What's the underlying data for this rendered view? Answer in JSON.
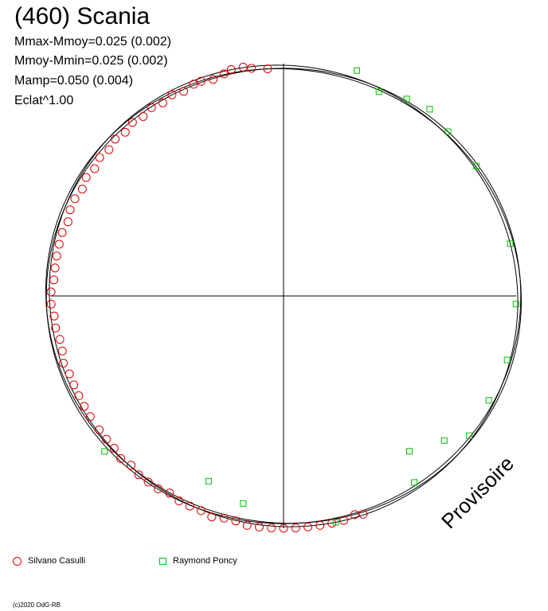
{
  "header": {
    "title": "(460) Scania",
    "stats": [
      "Mmax-Mmoy=0.025 (0.002)",
      "Mmoy-Mmin=0.025 (0.002)",
      "Mamp=0.050 (0.004)",
      "Eclat^1.00"
    ]
  },
  "watermark": "Provisoire",
  "copyright": "(c)2020 OdG-RB",
  "colors": {
    "series1": "#e00000",
    "series2": "#00c000",
    "axis": "#000000"
  },
  "legend": [
    {
      "name": "Silvano Casulli",
      "symbol": "circle"
    },
    {
      "name": "Raymond Poncy",
      "symbol": "square"
    }
  ],
  "chart_data": {
    "type": "scatter",
    "projection": "polar",
    "grid": false,
    "series": [
      {
        "name": "Silvano Casulli",
        "symbol": "circle",
        "points": [
          {
            "angle": 94,
            "r": 0.98
          },
          {
            "angle": 98,
            "r": 0.99
          },
          {
            "angle": 100,
            "r": 1.0
          },
          {
            "angle": 103,
            "r": 1.0
          },
          {
            "angle": 105,
            "r": 0.99
          },
          {
            "angle": 108,
            "r": 0.98
          },
          {
            "angle": 111,
            "r": 0.99
          },
          {
            "angle": 113,
            "r": 0.99
          },
          {
            "angle": 116,
            "r": 0.98
          },
          {
            "angle": 119,
            "r": 0.99
          },
          {
            "angle": 122,
            "r": 0.98
          },
          {
            "angle": 125,
            "r": 0.99
          },
          {
            "angle": 128,
            "r": 0.98
          },
          {
            "angle": 131,
            "r": 0.99
          },
          {
            "angle": 134,
            "r": 0.98
          },
          {
            "angle": 137,
            "r": 0.99
          },
          {
            "angle": 140,
            "r": 0.98
          },
          {
            "angle": 143,
            "r": 0.99
          },
          {
            "angle": 146,
            "r": 0.98
          },
          {
            "angle": 149,
            "r": 0.99
          },
          {
            "angle": 152,
            "r": 0.98
          },
          {
            "angle": 155,
            "r": 0.99
          },
          {
            "angle": 158,
            "r": 0.99
          },
          {
            "angle": 161,
            "r": 0.98
          },
          {
            "angle": 164,
            "r": 0.99
          },
          {
            "angle": 167,
            "r": 0.99
          },
          {
            "angle": 170,
            "r": 0.99
          },
          {
            "angle": 173,
            "r": 0.99
          },
          {
            "angle": 176,
            "r": 0.99
          },
          {
            "angle": 179,
            "r": 1.0
          },
          {
            "angle": 182,
            "r": 1.0
          },
          {
            "angle": 185,
            "r": 0.99
          },
          {
            "angle": 188,
            "r": 0.99
          },
          {
            "angle": 191,
            "r": 0.98
          },
          {
            "angle": 194,
            "r": 0.98
          },
          {
            "angle": 197,
            "r": 0.99
          },
          {
            "angle": 200,
            "r": 0.98
          },
          {
            "angle": 203,
            "r": 0.98
          },
          {
            "angle": 206,
            "r": 0.98
          },
          {
            "angle": 209,
            "r": 0.98
          },
          {
            "angle": 212,
            "r": 0.98
          },
          {
            "angle": 216,
            "r": 0.98
          },
          {
            "angle": 219,
            "r": 0.98
          },
          {
            "angle": 222,
            "r": 0.98
          },
          {
            "angle": 225,
            "r": 0.99
          },
          {
            "angle": 228,
            "r": 0.98
          },
          {
            "angle": 231,
            "r": 0.99
          },
          {
            "angle": 234,
            "r": 0.99
          },
          {
            "angle": 237,
            "r": 0.99
          },
          {
            "angle": 240,
            "r": 0.98
          },
          {
            "angle": 243,
            "r": 0.99
          },
          {
            "angle": 246,
            "r": 0.99
          },
          {
            "angle": 249,
            "r": 0.99
          },
          {
            "angle": 252,
            "r": 1.0
          },
          {
            "angle": 255,
            "r": 0.99
          },
          {
            "angle": 258,
            "r": 0.99
          },
          {
            "angle": 261,
            "r": 1.0
          },
          {
            "angle": 264,
            "r": 1.0
          },
          {
            "angle": 267,
            "r": 1.0
          },
          {
            "angle": 270,
            "r": 1.0
          },
          {
            "angle": 273,
            "r": 1.0
          },
          {
            "angle": 276,
            "r": 1.0
          },
          {
            "angle": 279,
            "r": 1.0
          },
          {
            "angle": 282,
            "r": 1.0
          },
          {
            "angle": 285,
            "r": 1.0
          },
          {
            "angle": 288,
            "r": 0.99
          },
          {
            "angle": 290,
            "r": 1.0
          }
        ]
      },
      {
        "name": "Raymond Poncy",
        "symbol": "square",
        "points": [
          {
            "angle": 72,
            "r": 1.02
          },
          {
            "angle": 65,
            "r": 0.97
          },
          {
            "angle": 58,
            "r": 1.0
          },
          {
            "angle": 52,
            "r": 1.02
          },
          {
            "angle": 45,
            "r": 1.0
          },
          {
            "angle": 34,
            "r": 1.0
          },
          {
            "angle": 13,
            "r": 1.0
          },
          {
            "angle": 358,
            "r": 1.0
          },
          {
            "angle": 344,
            "r": 1.0
          },
          {
            "angle": 333,
            "r": 0.99
          },
          {
            "angle": 323,
            "r": 1.0
          },
          {
            "angle": 318,
            "r": 0.93
          },
          {
            "angle": 309,
            "r": 0.86
          },
          {
            "angle": 305,
            "r": 0.98
          },
          {
            "angle": 283,
            "r": 1.0
          },
          {
            "angle": 259,
            "r": 0.91
          },
          {
            "angle": 248,
            "r": 0.86
          },
          {
            "angle": 221,
            "r": 1.02
          }
        ]
      }
    ]
  }
}
